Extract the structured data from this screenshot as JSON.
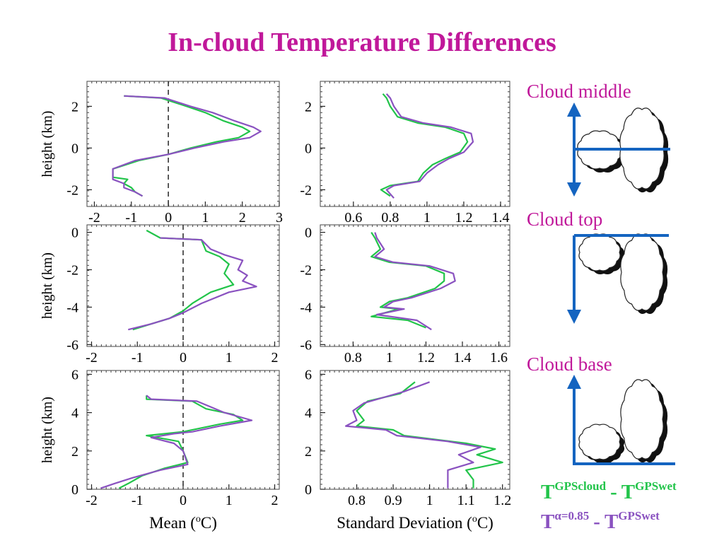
{
  "title": "In-cloud Temperature Differences",
  "colors": {
    "title": "#c0189a",
    "green": "#22c44a",
    "purple": "#8a52c0",
    "arrow": "#1464c0"
  },
  "labels": {
    "middle": "Cloud middle",
    "top": "Cloud top",
    "base": "Cloud base"
  },
  "legend": {
    "green": {
      "a": "T",
      "a_sup": "GPScloud",
      "sep": "-",
      "b": "T",
      "b_sup": "GPSwet"
    },
    "purple": {
      "a": "T",
      "a_sup": "α=0.85",
      "sep": "-",
      "b": "T",
      "b_sup": "GPSwet"
    }
  },
  "chart_data": [
    {
      "type": "line",
      "panel": "middle-mean",
      "xlabel": "",
      "ylabel": "height (km)",
      "xlim": [
        -2.2,
        3
      ],
      "ylim": [
        -2.8,
        3.2
      ],
      "xticks": [
        -2,
        -1,
        0,
        1,
        2,
        3
      ],
      "yticks": [
        -2,
        0,
        2
      ],
      "zero_line": true,
      "series": [
        {
          "color": "green",
          "points": [
            [
              -1.2,
              2.5
            ],
            [
              -0.2,
              2.4
            ],
            [
              0.5,
              2.0
            ],
            [
              1.0,
              1.7
            ],
            [
              1.5,
              1.3
            ],
            [
              2.0,
              1.0
            ],
            [
              2.2,
              0.8
            ],
            [
              1.9,
              0.5
            ],
            [
              1.3,
              0.3
            ],
            [
              0.6,
              0.0
            ],
            [
              0,
              -0.3
            ],
            [
              -0.8,
              -0.6
            ],
            [
              -1.5,
              -1.0
            ],
            [
              -1.5,
              -1.4
            ],
            [
              -1.1,
              -1.5
            ],
            [
              -1.2,
              -1.7
            ],
            [
              -1.0,
              -1.9
            ],
            [
              -0.9,
              -2.1
            ],
            [
              -0.7,
              -2.3
            ]
          ]
        },
        {
          "color": "purple",
          "points": [
            [
              -1.2,
              2.5
            ],
            [
              -0.1,
              2.4
            ],
            [
              0.6,
              2.0
            ],
            [
              1.2,
              1.7
            ],
            [
              1.8,
              1.3
            ],
            [
              2.3,
              1.0
            ],
            [
              2.5,
              0.8
            ],
            [
              2.2,
              0.5
            ],
            [
              1.5,
              0.3
            ],
            [
              0.7,
              0.0
            ],
            [
              0,
              -0.3
            ],
            [
              -0.9,
              -0.6
            ],
            [
              -1.5,
              -1.0
            ],
            [
              -1.5,
              -1.5
            ],
            [
              -1.2,
              -1.7
            ],
            [
              -1.2,
              -1.9
            ],
            [
              -0.9,
              -2.1
            ],
            [
              -0.7,
              -2.3
            ]
          ]
        }
      ]
    },
    {
      "type": "line",
      "panel": "middle-std",
      "xlabel": "",
      "ylabel": "",
      "xlim": [
        0.42,
        1.45
      ],
      "ylim": [
        -2.8,
        3.2
      ],
      "xticks": [
        0.6,
        0.8,
        1,
        1.2,
        1.4
      ],
      "yticks": [
        -2,
        0,
        2
      ],
      "series": [
        {
          "color": "green",
          "points": [
            [
              0.76,
              2.6
            ],
            [
              0.78,
              2.4
            ],
            [
              0.8,
              2.0
            ],
            [
              0.84,
              1.5
            ],
            [
              0.95,
              1.2
            ],
            [
              1.1,
              1.0
            ],
            [
              1.2,
              0.7
            ],
            [
              1.22,
              0.3
            ],
            [
              1.18,
              -0.2
            ],
            [
              1.1,
              -0.5
            ],
            [
              1.03,
              -0.8
            ],
            [
              0.98,
              -1.2
            ],
            [
              0.95,
              -1.6
            ],
            [
              0.8,
              -1.8
            ],
            [
              0.75,
              -2.0
            ],
            [
              0.8,
              -2.3
            ]
          ]
        },
        {
          "color": "purple",
          "points": [
            [
              0.78,
              2.6
            ],
            [
              0.8,
              2.4
            ],
            [
              0.82,
              2.0
            ],
            [
              0.86,
              1.5
            ],
            [
              0.98,
              1.2
            ],
            [
              1.13,
              1.0
            ],
            [
              1.24,
              0.7
            ],
            [
              1.25,
              0.3
            ],
            [
              1.2,
              -0.2
            ],
            [
              1.12,
              -0.5
            ],
            [
              1.06,
              -0.8
            ],
            [
              1.0,
              -1.2
            ],
            [
              0.96,
              -1.6
            ],
            [
              0.82,
              -1.8
            ],
            [
              0.78,
              -2.0
            ],
            [
              0.82,
              -2.4
            ]
          ]
        }
      ]
    },
    {
      "type": "line",
      "panel": "top-mean",
      "xlabel": "",
      "ylabel": "height (km)",
      "xlim": [
        -2.1,
        2.1
      ],
      "ylim": [
        -6.1,
        0.4
      ],
      "xticks": [
        -2,
        -1,
        0,
        1,
        2
      ],
      "yticks": [
        -6,
        -4,
        -2,
        0
      ],
      "zero_line": true,
      "series": [
        {
          "color": "green",
          "points": [
            [
              -0.8,
              0.1
            ],
            [
              -0.5,
              -0.3
            ],
            [
              0.4,
              -0.4
            ],
            [
              0.5,
              -1.0
            ],
            [
              0.8,
              -1.3
            ],
            [
              1.0,
              -1.7
            ],
            [
              0.9,
              -2.2
            ],
            [
              1.0,
              -2.5
            ],
            [
              1.1,
              -2.8
            ],
            [
              0.6,
              -3.2
            ],
            [
              0.2,
              -3.8
            ],
            [
              0.0,
              -4.2
            ],
            [
              -0.3,
              -4.6
            ],
            [
              -0.7,
              -4.9
            ],
            [
              -1.1,
              -5.2
            ]
          ]
        },
        {
          "color": "purple",
          "points": [
            [
              -0.5,
              -0.3
            ],
            [
              0.4,
              -0.4
            ],
            [
              0.6,
              -0.9
            ],
            [
              0.9,
              -1.2
            ],
            [
              1.3,
              -1.5
            ],
            [
              1.2,
              -2.0
            ],
            [
              1.4,
              -2.3
            ],
            [
              1.3,
              -2.6
            ],
            [
              1.6,
              -2.9
            ],
            [
              1.0,
              -3.2
            ],
            [
              0.4,
              -3.8
            ],
            [
              0.0,
              -4.3
            ],
            [
              -0.3,
              -4.6
            ],
            [
              -0.7,
              -4.9
            ],
            [
              -1.2,
              -5.2
            ]
          ]
        }
      ]
    },
    {
      "type": "line",
      "panel": "top-std",
      "xlabel": "",
      "ylabel": "",
      "xlim": [
        0.62,
        1.66
      ],
      "ylim": [
        -6.1,
        0.4
      ],
      "xticks": [
        0.8,
        1,
        1.2,
        1.4,
        1.6
      ],
      "yticks": [
        -6,
        -4,
        -2,
        0
      ],
      "series": [
        {
          "color": "green",
          "points": [
            [
              0.9,
              0.0
            ],
            [
              0.92,
              -0.3
            ],
            [
              0.95,
              -0.9
            ],
            [
              0.9,
              -1.3
            ],
            [
              1.0,
              -1.6
            ],
            [
              1.2,
              -1.8
            ],
            [
              1.3,
              -2.2
            ],
            [
              1.3,
              -2.6
            ],
            [
              1.25,
              -3.0
            ],
            [
              1.1,
              -3.5
            ],
            [
              1.0,
              -3.7
            ],
            [
              0.95,
              -4.0
            ],
            [
              1.05,
              -4.1
            ],
            [
              0.9,
              -4.5
            ],
            [
              1.1,
              -4.7
            ],
            [
              1.2,
              -5.1
            ]
          ]
        },
        {
          "color": "purple",
          "points": [
            [
              0.92,
              0.0
            ],
            [
              0.93,
              -0.3
            ],
            [
              0.97,
              -0.9
            ],
            [
              0.92,
              -1.3
            ],
            [
              1.02,
              -1.6
            ],
            [
              1.22,
              -1.8
            ],
            [
              1.35,
              -2.2
            ],
            [
              1.36,
              -2.6
            ],
            [
              1.28,
              -3.0
            ],
            [
              1.12,
              -3.5
            ],
            [
              1.02,
              -3.7
            ],
            [
              0.97,
              -4.0
            ],
            [
              1.08,
              -4.1
            ],
            [
              0.93,
              -4.4
            ],
            [
              1.15,
              -4.7
            ],
            [
              1.23,
              -5.2
            ]
          ]
        }
      ]
    },
    {
      "type": "line",
      "panel": "base-mean",
      "xlabel": "Mean (°C)",
      "xlabel_main": "Mean (",
      "xlabel_sup": "o",
      "xlabel_tail": "C)",
      "ylabel": "height (km)",
      "xlim": [
        -2.1,
        2.1
      ],
      "ylim": [
        0,
        6.2
      ],
      "xticks": [
        -2,
        -1,
        0,
        1,
        2
      ],
      "yticks": [
        0,
        2,
        4,
        6
      ],
      "zero_line": true,
      "series": [
        {
          "color": "green",
          "points": [
            [
              -0.8,
              4.9
            ],
            [
              -0.8,
              4.7
            ],
            [
              0.2,
              4.6
            ],
            [
              0.5,
              4.2
            ],
            [
              1.1,
              3.9
            ],
            [
              1.3,
              3.6
            ],
            [
              0.8,
              3.4
            ],
            [
              0.4,
              3.2
            ],
            [
              0.0,
              3.0
            ],
            [
              -0.8,
              2.8
            ],
            [
              -0.1,
              2.5
            ],
            [
              0.0,
              2.0
            ],
            [
              0.1,
              1.4
            ],
            [
              -0.4,
              1.1
            ],
            [
              -0.9,
              0.7
            ],
            [
              -1.2,
              0.3
            ],
            [
              -1.4,
              0.05
            ]
          ]
        },
        {
          "color": "purple",
          "points": [
            [
              -0.8,
              4.9
            ],
            [
              -0.7,
              4.7
            ],
            [
              0.3,
              4.6
            ],
            [
              0.6,
              4.3
            ],
            [
              0.9,
              4.0
            ],
            [
              1.5,
              3.6
            ],
            [
              0.8,
              3.3
            ],
            [
              0.2,
              3.0
            ],
            [
              -0.2,
              2.9
            ],
            [
              -0.7,
              2.7
            ],
            [
              -0.2,
              2.4
            ],
            [
              0.0,
              2.0
            ],
            [
              0.1,
              1.3
            ],
            [
              -0.5,
              1.0
            ],
            [
              -1.1,
              0.6
            ],
            [
              -1.5,
              0.3
            ],
            [
              -1.8,
              0.05
            ]
          ]
        }
      ]
    },
    {
      "type": "line",
      "panel": "base-std",
      "xlabel": "Standard Deviation (°C)",
      "xlabel_main": "Standard Deviation (",
      "xlabel_sup": "o",
      "xlabel_tail": "C)",
      "ylabel": "",
      "xlim": [
        0.7,
        1.22
      ],
      "ylim": [
        0,
        6.2
      ],
      "xticks": [
        0.8,
        0.9,
        1,
        1.1,
        1.2
      ],
      "yticks": [
        0,
        2,
        4,
        6
      ],
      "series": [
        {
          "color": "green",
          "points": [
            [
              0.96,
              5.6
            ],
            [
              0.92,
              5.0
            ],
            [
              0.83,
              4.6
            ],
            [
              0.8,
              4.1
            ],
            [
              0.82,
              3.6
            ],
            [
              0.8,
              3.3
            ],
            [
              0.9,
              3.1
            ],
            [
              0.93,
              2.8
            ],
            [
              1.1,
              2.4
            ],
            [
              1.18,
              2.1
            ],
            [
              1.13,
              1.8
            ],
            [
              1.2,
              1.4
            ],
            [
              1.1,
              1.0
            ],
            [
              1.12,
              0.5
            ],
            [
              1.12,
              0.05
            ]
          ]
        },
        {
          "color": "purple",
          "points": [
            [
              1.0,
              5.6
            ],
            [
              0.93,
              5.1
            ],
            [
              0.82,
              4.5
            ],
            [
              0.79,
              4.1
            ],
            [
              0.8,
              3.6
            ],
            [
              0.77,
              3.3
            ],
            [
              0.88,
              3.1
            ],
            [
              0.91,
              2.8
            ],
            [
              1.05,
              2.5
            ],
            [
              1.14,
              2.2
            ],
            [
              1.08,
              1.8
            ],
            [
              1.12,
              1.4
            ],
            [
              1.05,
              1.0
            ],
            [
              1.05,
              0.5
            ],
            [
              1.05,
              0.05
            ]
          ]
        }
      ]
    }
  ]
}
